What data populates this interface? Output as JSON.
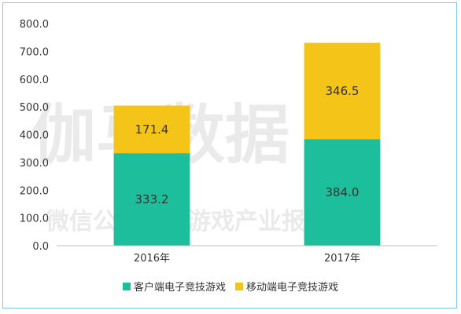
{
  "chart_data": {
    "type": "bar",
    "stacked": true,
    "categories": [
      "2016年",
      "2017年"
    ],
    "series": [
      {
        "name": "客户端电子竞技游戏",
        "values": [
          333.2,
          384.0
        ],
        "color": "#1dbe9c"
      },
      {
        "name": "移动端电子竞技游戏",
        "values": [
          171.4,
          346.5
        ],
        "color": "#f4c518"
      }
    ],
    "ylim": [
      0,
      800
    ],
    "yticks": [
      "0.0",
      "100.0",
      "200.0",
      "300.0",
      "400.0",
      "500.0",
      "600.0",
      "700.0",
      "800.0"
    ],
    "grid": false,
    "legend_position": "bottom",
    "title": "",
    "xlabel": "",
    "ylabel": ""
  },
  "watermark": {
    "line1": "伽马数据",
    "line2": "微信公众号：游戏产业报告"
  },
  "colors": {
    "axis": "#bfbfbf",
    "border": "#7ec8ea"
  }
}
